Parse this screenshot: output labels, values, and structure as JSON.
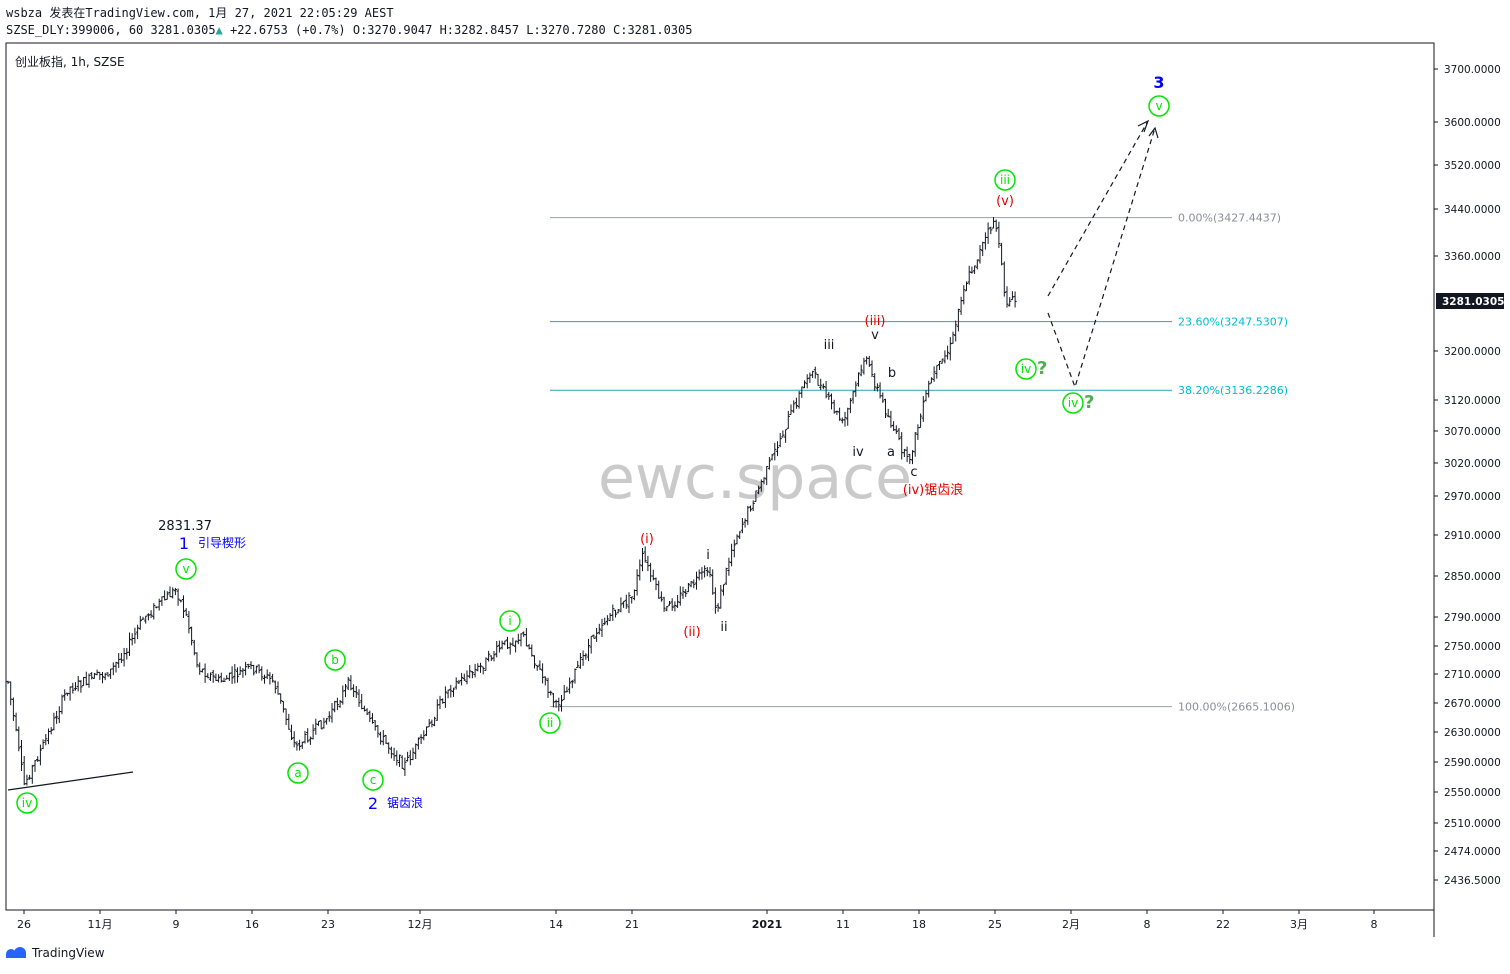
{
  "header": {
    "author": "wsbza",
    "published": "发表在TradingView.com, 1月 27, 2021 22:05:29 AEST",
    "symbol": "SZSE_DLY:399006, 60",
    "last": "3281.0305",
    "arrow": "▲",
    "change": "+22.6753 (+0.7%)",
    "o_label": "O:",
    "o_value": "3270.9047",
    "h_label": "H:",
    "h_value": "3282.8457",
    "l_label": "L:",
    "l_value": "3270.7280",
    "c_label": "C:",
    "c_value": "3281.0305"
  },
  "symbol_label": "创业板指, 1h, SZSE",
  "watermark": "ewc.space",
  "footer_logo": "TradingView",
  "colors": {
    "green": "#00e600",
    "red": "#e60000",
    "blue": "#0000ff",
    "fib_grey": "#9aa0a6",
    "fib_teal": "#26a6b8",
    "fib_teal_text": "#00bcd4",
    "price_tag_bg": "#131722"
  },
  "chart_data": {
    "type": "ohlc",
    "title": "创业板指, 1h, SZSE",
    "ylim": [
      2400,
      3730
    ],
    "y_ticks": [
      "3700.0000",
      "3600.0000",
      "3520.0000",
      "3440.0000",
      "3360.0000",
      "3281.0305",
      "3200.0000",
      "3120.0000",
      "3070.0000",
      "3020.0000",
      "2970.0000",
      "2910.0000",
      "2850.0000",
      "2790.0000",
      "2750.0000",
      "2710.0000",
      "2670.0000",
      "2630.0000",
      "2590.0000",
      "2550.0000",
      "2510.0000",
      "2474.0000",
      "2436.5000"
    ],
    "x_ticks": [
      "26",
      "11月",
      "9",
      "16",
      "23",
      "12月",
      "14",
      "21",
      "2021",
      "11",
      "18",
      "25",
      "2月",
      "8",
      "22",
      "3月",
      "8"
    ],
    "current_price": "3281.0305",
    "price_path": [
      [
        "2020-10-23",
        2700
      ],
      [
        "2020-10-26",
        2560
      ],
      [
        "2020-10-28",
        2620
      ],
      [
        "2020-10-30",
        2690
      ],
      [
        "2020-11-03",
        2715
      ],
      [
        "2020-11-05",
        2760
      ],
      [
        "2020-11-06",
        2790
      ],
      [
        "2020-11-09",
        2831.37
      ],
      [
        "2020-11-10",
        2790
      ],
      [
        "2020-11-11",
        2720
      ],
      [
        "2020-11-13",
        2700
      ],
      [
        "2020-11-16",
        2720
      ],
      [
        "2020-11-18",
        2700
      ],
      [
        "2020-11-20",
        2610
      ],
      [
        "2020-11-23",
        2650
      ],
      [
        "2020-11-25",
        2700
      ],
      [
        "2020-11-27",
        2640
      ],
      [
        "2020-11-30",
        2585
      ],
      [
        "2020-12-02",
        2630
      ],
      [
        "2020-12-04",
        2690
      ],
      [
        "2020-12-07",
        2720
      ],
      [
        "2020-12-09",
        2750
      ],
      [
        "2020-12-11",
        2765
      ],
      [
        "2020-12-14",
        2665
      ],
      [
        "2020-12-16",
        2720
      ],
      [
        "2020-12-18",
        2780
      ],
      [
        "2020-12-21",
        2820
      ],
      [
        "2020-12-22",
        2880
      ],
      [
        "2020-12-24",
        2800
      ],
      [
        "2020-12-28",
        2860
      ],
      [
        "2020-12-29",
        2800
      ],
      [
        "2020-12-31",
        2900
      ],
      [
        "2021-01-04",
        3010
      ],
      [
        "2021-01-06",
        3090
      ],
      [
        "2021-01-08",
        3170
      ],
      [
        "2021-01-11",
        3080
      ],
      [
        "2021-01-13",
        3190
      ],
      [
        "2021-01-15",
        3100
      ],
      [
        "2021-01-17",
        3020
      ],
      [
        "2021-01-19",
        3150
      ],
      [
        "2021-01-21",
        3210
      ],
      [
        "2021-01-22",
        3300
      ],
      [
        "2021-01-25",
        3427.44
      ],
      [
        "2021-01-26",
        3280
      ],
      [
        "2021-01-27",
        3281.03
      ]
    ],
    "fibonacci": [
      {
        "label": "0.00%(3427.4437)",
        "price": 3427.4437
      },
      {
        "label": "23.60%(3247.5307)",
        "price": 3247.5307
      },
      {
        "label": "38.20%(3136.2286)",
        "price": 3136.2286
      },
      {
        "label": "100.00%(2665.1006)",
        "price": 2665.1006
      }
    ],
    "wave_labels": {
      "circled_green": [
        {
          "text": "iv",
          "date": "2020-10-26",
          "price": 2540
        },
        {
          "text": "v",
          "date": "2020-11-09",
          "price": 2860
        },
        {
          "text": "a",
          "date": "2020-11-20",
          "price": 2575
        },
        {
          "text": "b",
          "date": "2020-11-25",
          "price": 2735
        },
        {
          "text": "c",
          "date": "2020-11-30",
          "price": 2565
        },
        {
          "text": "i",
          "date": "2020-12-11",
          "price": 2795
        },
        {
          "text": "ii",
          "date": "2020-12-14",
          "price": 2625
        },
        {
          "text": "iii",
          "date": "2021-01-25",
          "price": 3490
        },
        {
          "text": "iv",
          "date": "2021-01-27",
          "price": 3170
        },
        {
          "text": "iv",
          "date": "2021-02-02",
          "price": 3115
        },
        {
          "text": "v",
          "date": "2021-02-10",
          "price": 3655
        }
      ],
      "red": [
        "(i)",
        "(ii)",
        "(iii)",
        "(iv)锯齿浪",
        "(v)"
      ],
      "black": [
        "i",
        "ii",
        "iii",
        "iv",
        "v",
        "a",
        "b",
        "c"
      ],
      "blue": [
        {
          "text": "1",
          "note": "引导楔形"
        },
        {
          "text": "2",
          "note": "锯齿浪"
        },
        {
          "text": "3",
          "note": ""
        }
      ],
      "annotations": {
        "peak_value": "2831.37",
        "question": "?"
      }
    }
  }
}
